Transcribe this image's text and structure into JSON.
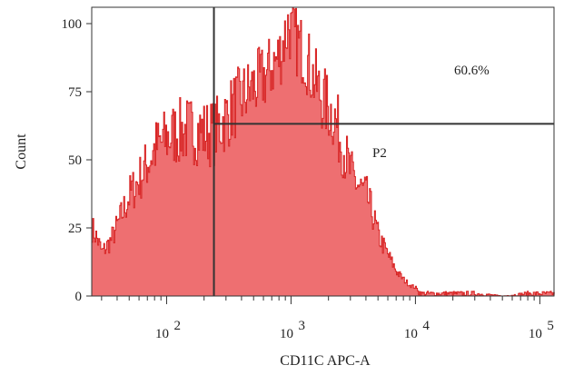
{
  "chart_data": {
    "type": "area",
    "xlabel": "CD11C APC-A",
    "ylabel": "Count",
    "xscale": "log",
    "xlim": [
      25,
      130000
    ],
    "ylim": [
      0,
      106
    ],
    "yticks": [
      "0",
      "25",
      "50",
      "75",
      "100"
    ],
    "xticks": [
      {
        "base": "10",
        "exp": "2"
      },
      {
        "base": "10",
        "exp": "3"
      },
      {
        "base": "10",
        "exp": "4"
      },
      {
        "base": "10",
        "exp": "5"
      }
    ],
    "fill_color": "#ee6f71",
    "line_color": "#d82424",
    "gate_color": "#333333",
    "series": [
      {
        "x": [
          25,
          28,
          30,
          35,
          40,
          50,
          60,
          70,
          80,
          100,
          120,
          150,
          200,
          240,
          280,
          350,
          450,
          600,
          800,
          950,
          1000,
          1150,
          1300,
          1500,
          1800,
          2200,
          2700,
          3000,
          3500,
          4000,
          4500,
          5000,
          6000,
          7000,
          8000,
          9000,
          10000,
          11000,
          12000,
          14000,
          20000,
          30000,
          50000,
          80000,
          100000
        ],
        "y": [
          25,
          20,
          16,
          20,
          26,
          37,
          43,
          49,
          54,
          58,
          60,
          61,
          60,
          60,
          64,
          70,
          75,
          80,
          88,
          100,
          96,
          92,
          88,
          80,
          72,
          66,
          52,
          45,
          40,
          37,
          30,
          22,
          15,
          9,
          6,
          4,
          3,
          1,
          1,
          1,
          1,
          1,
          0,
          1,
          1
        ]
      }
    ],
    "gates": [
      {
        "name": "P2",
        "type": "vertical",
        "x": 240
      },
      {
        "type": "horizontal",
        "y": 63.2
      }
    ],
    "annotations": [
      "60.6%",
      "P2"
    ]
  }
}
